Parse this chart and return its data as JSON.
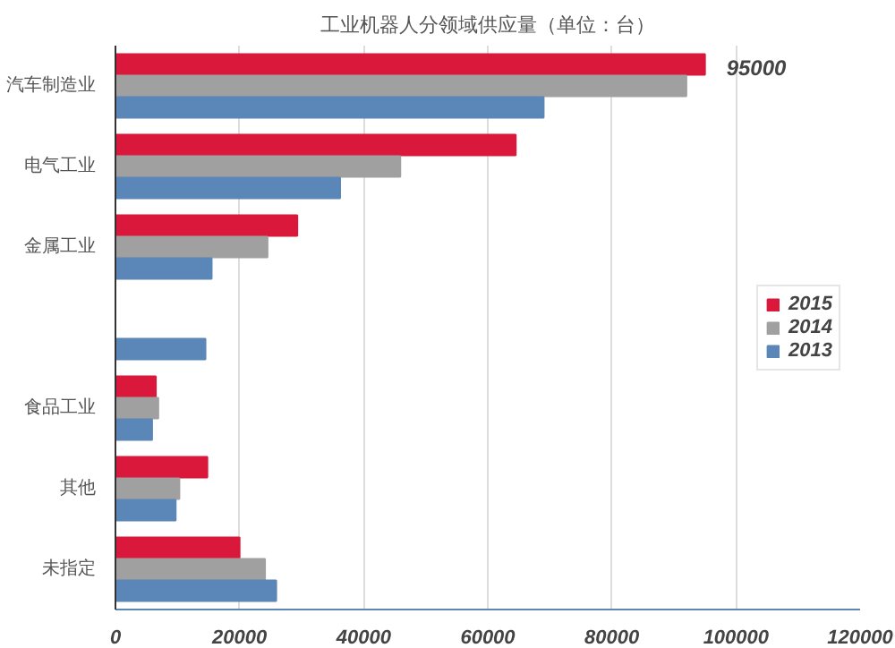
{
  "chart_data": {
    "type": "bar",
    "orientation": "horizontal",
    "title": "工业机器人分领域供应量（单位：台）",
    "categories": [
      "汽车制造业",
      "电气工业",
      "金属工业",
      null,
      "食品工业",
      "其他",
      "未指定"
    ],
    "series": [
      {
        "name": "2015",
        "color": "#d9183b",
        "values": [
          95000,
          64500,
          29300,
          null,
          6500,
          14800,
          20000
        ],
        "value_labels": [
          "95000",
          null,
          null,
          null,
          null,
          null,
          null
        ]
      },
      {
        "name": "2014",
        "color": "#a0a0a0",
        "values": [
          92000,
          45900,
          24500,
          null,
          6900,
          10300,
          24100
        ]
      },
      {
        "name": "2013",
        "color": "#5b86b8",
        "values": [
          69000,
          36200,
          15500,
          14500,
          5900,
          9700,
          25900
        ]
      }
    ],
    "xlim": [
      0,
      120000
    ],
    "xticks": [
      0,
      20000,
      40000,
      60000,
      80000,
      100000,
      120000
    ],
    "grid": "x",
    "legend": "right"
  }
}
